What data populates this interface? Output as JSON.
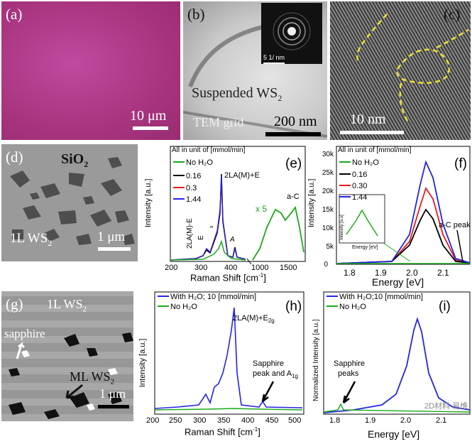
{
  "panels": {
    "a": {
      "label": "(a)",
      "scale": "10 μm"
    },
    "b": {
      "label": "(b)",
      "fft_scale": "5  1/ nm",
      "caption": "Suspended WS",
      "caption_sub": "2",
      "grid_label": "TEM grid",
      "scale": "200 nm"
    },
    "c": {
      "label": "(c)",
      "scale": "10 nm"
    },
    "d": {
      "label": "(d)",
      "substrate": "SiO",
      "substrate_sub": "2",
      "film": "1L WS",
      "film_sub": "2",
      "scale": "1 μm"
    },
    "e": {
      "label": "(e)",
      "note": "All in unit of [mmol/min]",
      "ylabel": "Intensity [a.u.]",
      "xlabel": "Raman Shift [cm",
      "xlabel_sup": "-1",
      "xlabel_end": "]",
      "legend": [
        "No H₂O",
        "0.16",
        "0.3",
        "1.44"
      ],
      "peak_main": "2LA(M)+E",
      "peak_labels": [
        "2LA(M)-E",
        "E",
        "A"
      ],
      "ac_label": "a-C",
      "x5": "x 5",
      "xticks": [
        "200",
        "300",
        "400",
        "1000",
        "1500"
      ]
    },
    "f": {
      "label": "(f)",
      "note": "All in unit of [mmol/min]",
      "ylabel": "Intensity [a.u.]",
      "xlabel": "Energy [eV]",
      "legend": [
        "No H₂O",
        "0.16",
        "0.30",
        "1.44"
      ],
      "ac_label": "a-C peak",
      "yticks": [
        "0",
        "5k",
        "10k",
        "15k",
        "20k",
        "25k",
        "30k"
      ],
      "xticks": [
        "1.8",
        "1.9",
        "2.0",
        "2.1"
      ],
      "inset_ylabel": "Intensity [a.u]",
      "inset_xlabel": "Energy [eV]"
    },
    "g": {
      "label": "(g)",
      "film": "1L WS",
      "film_sub": "2",
      "sapphire": "sapphire",
      "ml": "ML WS",
      "ml_sub": "2",
      "scale": "1 μm"
    },
    "h": {
      "label": "(h)",
      "ylabel": "Intensity [a.u.]",
      "xlabel": "Raman Shift [cm",
      "xlabel_sup": "-1",
      "xlabel_end": "]",
      "legend": [
        "With H₂O; 10 [mmol/min]",
        "No H₂O"
      ],
      "peak": "2LA(M)+E",
      "peak_sub": "2g",
      "sapphire": "Sapphire",
      "sapphire2": "peak and A",
      "sapphire2_sub": "1g",
      "xticks": [
        "200",
        "250",
        "300",
        "350",
        "400",
        "450",
        "500"
      ]
    },
    "i": {
      "label": "(i)",
      "ylabel": "Normalized Intensity [a.u.]",
      "xlabel": "Energy [eV]",
      "legend": [
        "With H₂O;10 [mmol/min]",
        "No H₂O"
      ],
      "sapphire": "Sapphire",
      "sapphire2": "peaks",
      "xticks": [
        "1.8",
        "1.9",
        "2.0",
        "2.1"
      ],
      "watermark": "2D材料 易维"
    }
  },
  "colors": {
    "green": "#1aaa1a",
    "black": "#000000",
    "red": "#e8191d",
    "blue": "#2525e6",
    "yellow": "#f0e030",
    "magenta": "#b13a8f"
  }
}
